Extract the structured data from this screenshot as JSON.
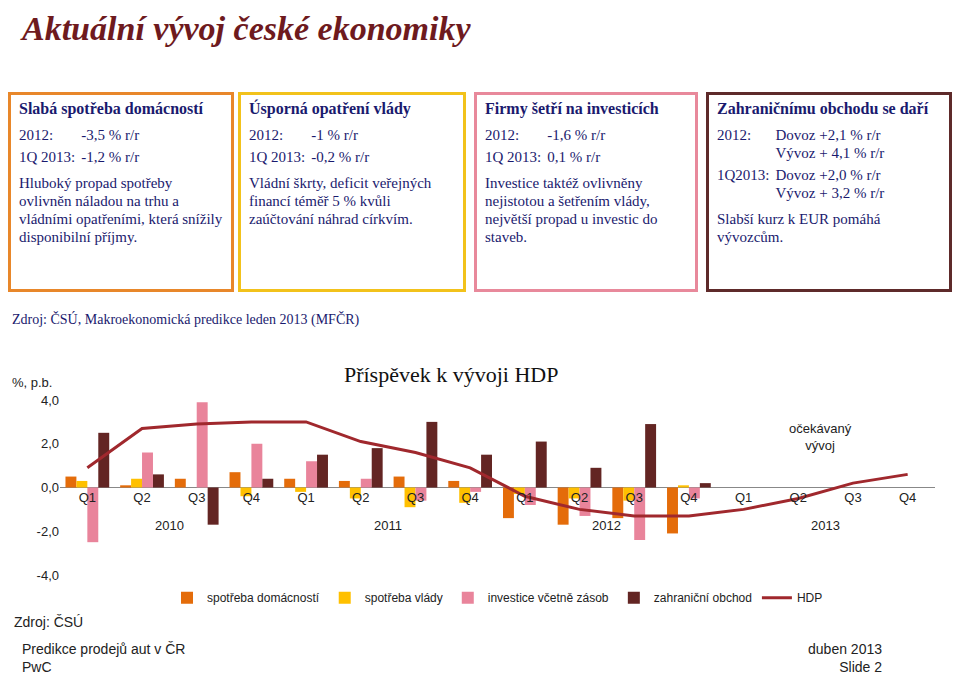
{
  "slide": {
    "title": "Aktuální vývoj české ekonomiky",
    "boxes": [
      {
        "heading": "Slabá spotřeba domácností",
        "color": "#e8872a",
        "stats": [
          {
            "period": "2012:",
            "lines": [
              "-3,5 % r/r"
            ]
          },
          {
            "period": "1Q 2013:",
            "lines": [
              "-1,2 % r/r"
            ]
          }
        ],
        "text": "Hluboký propad spotřeby ovlivněn náladou na trhu a vládními opatřeními, která snížily disponibilní příjmy."
      },
      {
        "heading": "Úsporná opatření vlády",
        "color": "#f2c21b",
        "stats": [
          {
            "period": "2012:",
            "lines": [
              "-1 % r/r"
            ]
          },
          {
            "period": "1Q 2013:",
            "lines": [
              "-0,2 % r/r"
            ]
          }
        ],
        "text": "Vládní škrty, deficit veřejných financí téměř 5 % kvůli zaúčtování náhrad církvím."
      },
      {
        "heading": "Firmy šetří na investicích",
        "color": "#e8899b",
        "stats": [
          {
            "period": "2012:",
            "lines": [
              "-1,6 % r/r"
            ]
          },
          {
            "period": "1Q 2013:",
            "lines": [
              "0,1 % r/r"
            ]
          }
        ],
        "text": "Investice taktéž ovlivněny nejistotou a šetřením vlády, největší propad u investic do staveb."
      },
      {
        "heading": "Zahraničnímu obchodu se daří",
        "color": "#5e2a2a",
        "stats": [
          {
            "period": "2012:",
            "lines": [
              "Dovoz +2,1 % r/r",
              "Vývoz + 4,1 % r/r"
            ]
          },
          {
            "period": "1Q2013:",
            "lines": [
              "Dovoz +2,0 % r/r",
              "Vývoz + 3,2 % r/r"
            ]
          }
        ],
        "text": "Slabší kurz k EUR pomáhá vývozcům."
      }
    ],
    "source": "Zdroj: ČSÚ, Makroekonomická predikce leden 2013 (MFČR)",
    "footer": {
      "left": [
        "Predikce prodejů aut v ČR",
        "PwC"
      ],
      "right": [
        "duben 2013",
        "Slide 2"
      ]
    }
  },
  "chart_data": {
    "type": "bar",
    "title": "Příspěvek k vývoji HDP",
    "ylabel": "%, p.b.",
    "source": "Zdroj: ČSÚ",
    "categories": [
      "Q1",
      "Q2",
      "Q3",
      "Q4",
      "Q1",
      "Q2",
      "Q3",
      "Q4",
      "Q1",
      "Q2",
      "Q3",
      "Q4",
      "Q1",
      "Q2",
      "Q3",
      "Q4"
    ],
    "x_groups": [
      "2010",
      "2011",
      "2012",
      "2013"
    ],
    "series": [
      {
        "name": "spotřeba domácností",
        "type": "bar",
        "color": "#e46c0a",
        "values": [
          0.5,
          0.1,
          0.4,
          0.7,
          0.4,
          0.3,
          0.5,
          0.3,
          -1.4,
          -1.7,
          -1.4,
          -2.1,
          null,
          null,
          null,
          null
        ]
      },
      {
        "name": "spotřeba vlády",
        "type": "bar",
        "color": "#ffc000",
        "values": [
          0.3,
          0.4,
          0.0,
          -0.4,
          -0.2,
          -0.5,
          -0.9,
          -0.7,
          -0.3,
          -0.5,
          -0.6,
          0.1,
          null,
          null,
          null,
          null
        ]
      },
      {
        "name": "investice včetně zásob",
        "type": "bar",
        "color": "#e9849b",
        "values": [
          -2.5,
          1.6,
          3.9,
          2.0,
          1.2,
          0.4,
          -0.6,
          -0.2,
          -0.8,
          -1.3,
          -2.4,
          -0.5,
          null,
          null,
          null,
          null
        ]
      },
      {
        "name": "zahraniční obchod",
        "type": "bar",
        "color": "#632523",
        "values": [
          2.5,
          0.6,
          -1.7,
          0.4,
          1.5,
          1.8,
          3.0,
          1.5,
          2.1,
          0.9,
          2.9,
          0.2,
          null,
          null,
          null,
          null
        ]
      },
      {
        "name": "HDP",
        "type": "line",
        "color": "#a0282d",
        "values": [
          0.9,
          2.7,
          2.9,
          3.0,
          3.0,
          2.1,
          1.6,
          0.9,
          -0.4,
          -1.0,
          -1.3,
          -1.3,
          -1.0,
          -0.5,
          0.2,
          0.6
        ]
      }
    ],
    "annotations": [
      {
        "lines": [
          "očekávaný",
          "vývoj"
        ],
        "x": 13.4,
        "y": 2.3
      }
    ],
    "ylim": [
      -4,
      4
    ],
    "yticks": [
      {
        "value": -4,
        "label": "-4,0"
      },
      {
        "value": -2,
        "label": "-2,0"
      },
      {
        "value": 0,
        "label": "0,0"
      },
      {
        "value": 2,
        "label": "2,0"
      },
      {
        "value": 4,
        "label": "4,0"
      }
    ],
    "grid": false,
    "legend": "bottom"
  }
}
